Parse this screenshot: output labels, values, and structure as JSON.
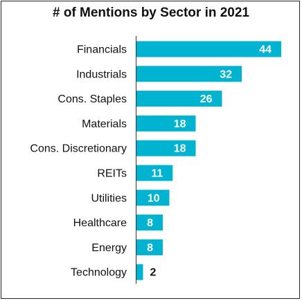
{
  "chart_data": {
    "type": "bar",
    "orientation": "horizontal",
    "title": "# of Mentions by Sector in 2021",
    "categories": [
      "Financials",
      "Industrials",
      "Cons. Staples",
      "Materials",
      "Cons. Discretionary",
      "REITs",
      "Utilities",
      "Healthcare",
      "Energy",
      "Technology"
    ],
    "values": [
      44,
      32,
      26,
      18,
      18,
      11,
      10,
      8,
      8,
      2
    ],
    "xlim": [
      0,
      44
    ],
    "grid": false,
    "bar_color": "#00b3d0",
    "label_color_inside": "#ffffff",
    "label_color_outside": "#111111"
  }
}
